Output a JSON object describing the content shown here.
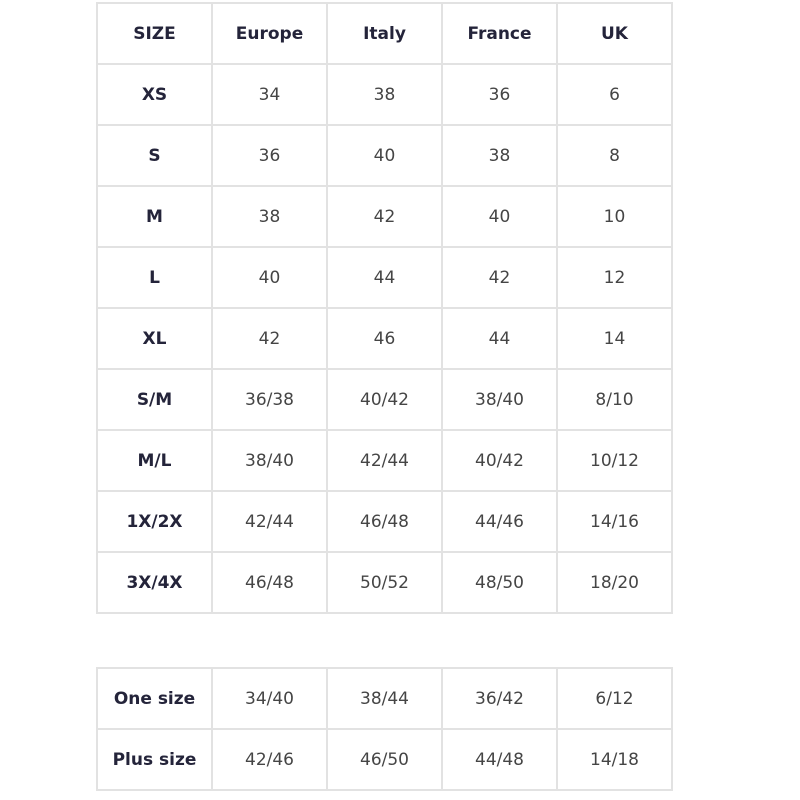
{
  "size_table": {
    "headers": [
      "SIZE",
      "Europe",
      "Italy",
      "France",
      "UK"
    ],
    "rows": [
      [
        "XS",
        "34",
        "38",
        "36",
        "6"
      ],
      [
        "S",
        "36",
        "40",
        "38",
        "8"
      ],
      [
        "M",
        "38",
        "42",
        "40",
        "10"
      ],
      [
        "L",
        "40",
        "44",
        "42",
        "12"
      ],
      [
        "XL",
        "42",
        "46",
        "44",
        "14"
      ],
      [
        "S/M",
        "36/38",
        "40/42",
        "38/40",
        "8/10"
      ],
      [
        "M/L",
        "38/40",
        "42/44",
        "40/42",
        "10/12"
      ],
      [
        "1X/2X",
        "42/44",
        "46/48",
        "44/46",
        "14/16"
      ],
      [
        "3X/4X",
        "46/48",
        "50/52",
        "48/50",
        "18/20"
      ]
    ]
  },
  "extra_table": {
    "rows": [
      [
        "One size",
        "34/40",
        "38/44",
        "36/42",
        "6/12"
      ],
      [
        "Plus size",
        "42/46",
        "46/50",
        "44/48",
        "14/18"
      ]
    ]
  }
}
